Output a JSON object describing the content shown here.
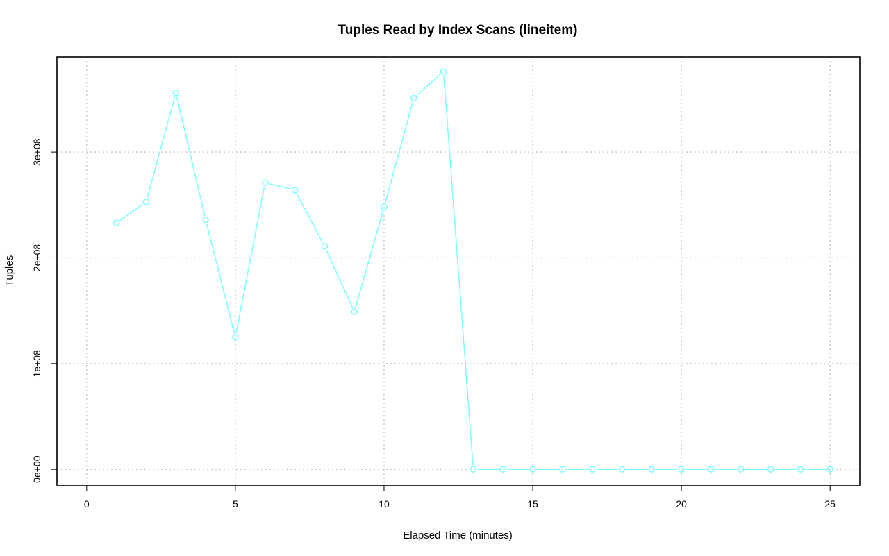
{
  "chart_data": {
    "type": "line",
    "title": "Tuples Read by Index Scans (lineitem)",
    "xlabel": "Elapsed Time (minutes)",
    "ylabel": "Tuples",
    "xlim": [
      -1,
      26
    ],
    "ylim": [
      -15000000,
      390000000
    ],
    "x_ticks": [
      0,
      5,
      10,
      15,
      20,
      25
    ],
    "x_tick_labels": [
      "0",
      "5",
      "10",
      "15",
      "20",
      "25"
    ],
    "y_ticks": [
      0,
      100000000,
      200000000,
      300000000
    ],
    "y_tick_labels": [
      "0e+00",
      "1e+08",
      "2e+08",
      "3e+08"
    ],
    "grid": true,
    "series": [
      {
        "color": "#7fffff",
        "marker": "open-circle",
        "x": [
          1,
          2,
          3,
          4,
          5,
          6,
          7,
          8,
          9,
          10,
          11,
          12,
          13,
          14,
          15,
          16,
          17,
          18,
          19,
          20,
          21,
          22,
          23,
          24,
          25
        ],
        "y": [
          233000000,
          253000000,
          356000000,
          236000000,
          125000000,
          271000000,
          264000000,
          211000000,
          149000000,
          248000000,
          351000000,
          376000000,
          0,
          0,
          0,
          0,
          0,
          0,
          0,
          0,
          0,
          0,
          0,
          0,
          0
        ]
      }
    ]
  }
}
